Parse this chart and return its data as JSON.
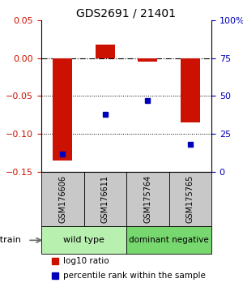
{
  "title": "GDS2691 / 21401",
  "samples": [
    "GSM176606",
    "GSM176611",
    "GSM175764",
    "GSM175765"
  ],
  "log10_ratio": [
    -0.135,
    0.018,
    -0.005,
    -0.085
  ],
  "percentile_rank": [
    12,
    38,
    47,
    18
  ],
  "group_labels": [
    "wild type",
    "dominant negative"
  ],
  "group_colors": [
    "#b8f0b0",
    "#78d870"
  ],
  "ylim_left": [
    -0.15,
    0.05
  ],
  "ylim_right": [
    0,
    100
  ],
  "yticks_left": [
    -0.15,
    -0.1,
    -0.05,
    0,
    0.05
  ],
  "yticks_right": [
    0,
    25,
    50,
    75,
    100
  ],
  "bar_color": "#cc1100",
  "dot_color": "#0000bb",
  "dotted_lines": [
    -0.05,
    -0.1
  ],
  "bar_width": 0.45,
  "strain_label": "strain",
  "sample_box_color": "#c8c8c8",
  "legend_bar_label": "log10 ratio",
  "legend_dot_label": "percentile rank within the sample",
  "title_fontsize": 10,
  "axis_fontsize": 8,
  "label_fontsize": 8,
  "sample_fontsize": 7,
  "legend_fontsize": 7.5
}
